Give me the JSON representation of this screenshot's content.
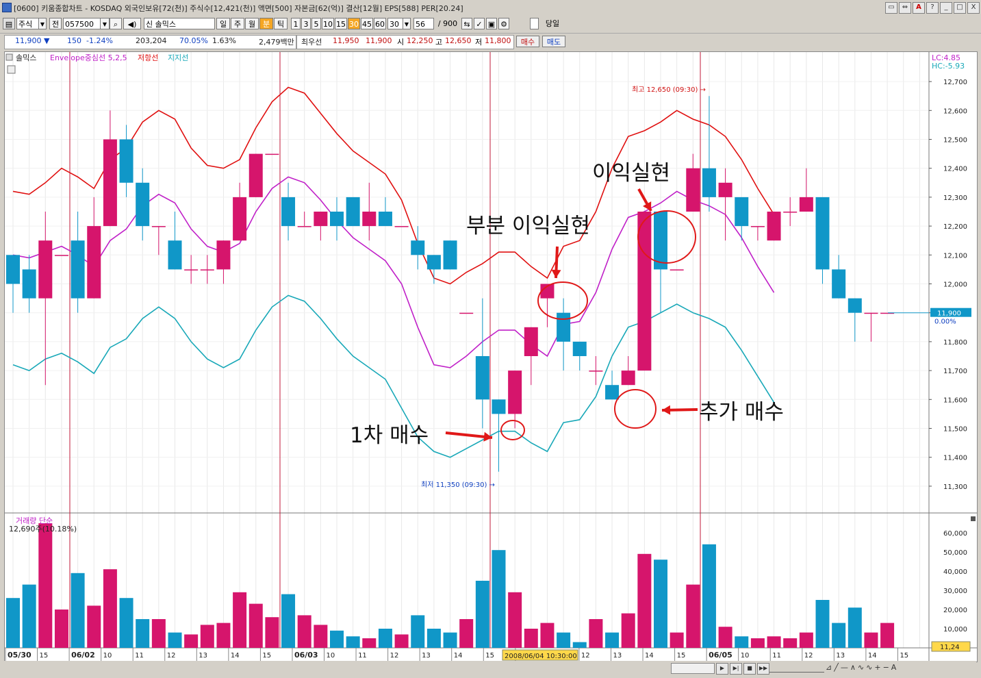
{
  "window": {
    "title": "[0600] 키움종합차트 - KOSDAQ 외국인보유[72(천)] 주식수[12,421(천)] 액면[500] 자본금[62(억)] 결산[12월] EPS[588] PER[20.24]",
    "buttons": [
      "▭",
      "⇔",
      "A",
      "?",
      "_",
      "□",
      "X"
    ]
  },
  "toolbar": {
    "market": "주식",
    "prev_label": "전",
    "code": "057500",
    "name": "신 솔믹스",
    "periods": [
      "일",
      "주",
      "월",
      "분",
      "틱"
    ],
    "selected_period": "분",
    "minutes": [
      "1",
      "3",
      "5",
      "10",
      "15",
      "30",
      "45",
      "60"
    ],
    "selected_minute": "30",
    "interval_value": "30",
    "count_value": "56",
    "count_total": "/ 900",
    "today_label": "당일"
  },
  "quote": {
    "price": "11,900 ▼",
    "change": "150",
    "change_pct": "-1.24%",
    "volume": "203,204",
    "ratio1": "70.05%",
    "ratio2": "1.63%",
    "amount": "2,479백만",
    "best_label": "최우선",
    "best_ask": "11,950",
    "best_bid": "11,900",
    "open_label": "시",
    "open": "12,250",
    "high_label": "고",
    "high": "12,650",
    "low_label": "저",
    "low": "11,800",
    "buy_btn": "매수",
    "sell_btn": "매도"
  },
  "legend": {
    "name": "솔믹스",
    "env": "Envelope중심선 5,2,5",
    "resist": "저항선",
    "support": "지지선",
    "lc": "LC:4.85",
    "hc": "HC:-5.93",
    "vol_title": "거래량 단순",
    "vol_value": "12,690주(10.18%)"
  },
  "annotations": {
    "high_text": "최고 12,650 (09:30) →",
    "low_text": "최저 11,350 (09:30) →",
    "first_buy": "1차 매수",
    "partial_profit": "부분 이익실현",
    "profit": "이익실현",
    "add_buy": "추가 매수",
    "price_tag": "11,900",
    "price_pct": "0.00%",
    "vol_tag": "11,24",
    "cursor_time": "2008/06/04 10:30:00"
  },
  "colors": {
    "up": "#d6156c",
    "down": "#1097c8",
    "resist": "#e01010",
    "center": "#c020c8",
    "support": "#18a8b8",
    "day_line": "#c01a3a"
  },
  "chart_data": {
    "type": "candlestick",
    "ylim": [
      11250,
      12750
    ],
    "yticks": [
      11300,
      11400,
      11500,
      11600,
      11700,
      11800,
      11900,
      12000,
      12100,
      12200,
      12300,
      12400,
      12500,
      12600,
      12700
    ],
    "candles": [
      {
        "o": 12100,
        "c": 12000,
        "h": 12100,
        "l": 11900,
        "v": 26000
      },
      {
        "o": 12050,
        "c": 11950,
        "h": 12100,
        "l": 11900,
        "v": 33000
      },
      {
        "o": 11950,
        "c": 12150,
        "h": 12250,
        "l": 11650,
        "v": 65000
      },
      {
        "o": 12100,
        "c": 12100,
        "h": 12100,
        "l": 12100,
        "v": 20000
      },
      {
        "o": 12150,
        "c": 11950,
        "h": 12250,
        "l": 11900,
        "v": 39000
      },
      {
        "o": 11950,
        "c": 12200,
        "h": 12300,
        "l": 11950,
        "v": 22000
      },
      {
        "o": 12200,
        "c": 12500,
        "h": 12600,
        "l": 12200,
        "v": 41000
      },
      {
        "o": 12500,
        "c": 12350,
        "h": 12550,
        "l": 12300,
        "v": 26000
      },
      {
        "o": 12350,
        "c": 12200,
        "h": 12400,
        "l": 12150,
        "v": 15000
      },
      {
        "o": 12200,
        "c": 12200,
        "h": 12200,
        "l": 12100,
        "v": 15000
      },
      {
        "o": 12150,
        "c": 12050,
        "h": 12250,
        "l": 12050,
        "v": 8000
      },
      {
        "o": 12050,
        "c": 12050,
        "h": 12100,
        "l": 12000,
        "v": 7000
      },
      {
        "o": 12050,
        "c": 12050,
        "h": 12100,
        "l": 12000,
        "v": 12000
      },
      {
        "o": 12050,
        "c": 12150,
        "h": 12150,
        "l": 12000,
        "v": 13000
      },
      {
        "o": 12150,
        "c": 12300,
        "h": 12350,
        "l": 12150,
        "v": 29000
      },
      {
        "o": 12300,
        "c": 12450,
        "h": 12450,
        "l": 12300,
        "v": 23000
      },
      {
        "o": 12450,
        "c": 12450,
        "h": 12450,
        "l": 12450,
        "v": 16000
      },
      {
        "o": 12300,
        "c": 12200,
        "h": 12350,
        "l": 12150,
        "v": 28000
      },
      {
        "o": 12200,
        "c": 12200,
        "h": 12250,
        "l": 12200,
        "v": 17000
      },
      {
        "o": 12200,
        "c": 12250,
        "h": 12250,
        "l": 12150,
        "v": 12000
      },
      {
        "o": 12250,
        "c": 12200,
        "h": 12300,
        "l": 12150,
        "v": 9000
      },
      {
        "o": 12300,
        "c": 12200,
        "h": 12300,
        "l": 12200,
        "v": 6000
      },
      {
        "o": 12200,
        "c": 12250,
        "h": 12350,
        "l": 12150,
        "v": 5000
      },
      {
        "o": 12250,
        "c": 12200,
        "h": 12300,
        "l": 12200,
        "v": 10000
      },
      {
        "o": 12200,
        "c": 12200,
        "h": 12200,
        "l": 12200,
        "v": 7000
      },
      {
        "o": 12150,
        "c": 12100,
        "h": 12200,
        "l": 12050,
        "v": 17000
      },
      {
        "o": 12100,
        "c": 12050,
        "h": 12100,
        "l": 12000,
        "v": 10000
      },
      {
        "o": 12150,
        "c": 12050,
        "h": 12150,
        "l": 12050,
        "v": 8000
      },
      {
        "o": 11900,
        "c": 11900,
        "h": 11900,
        "l": 11900,
        "v": 15000
      },
      {
        "o": 11750,
        "c": 11600,
        "h": 11950,
        "l": 11500,
        "v": 35000
      },
      {
        "o": 11600,
        "c": 11550,
        "h": 11600,
        "l": 11350,
        "v": 51000
      },
      {
        "o": 11550,
        "c": 11700,
        "h": 11700,
        "l": 11500,
        "v": 29000
      },
      {
        "o": 11750,
        "c": 11850,
        "h": 11850,
        "l": 11650,
        "v": 10000
      },
      {
        "o": 11950,
        "c": 12000,
        "h": 12000,
        "l": 11850,
        "v": 13000
      },
      {
        "o": 11900,
        "c": 11800,
        "h": 11950,
        "l": 11700,
        "v": 8000
      },
      {
        "o": 11800,
        "c": 11750,
        "h": 11800,
        "l": 11700,
        "v": 3000
      },
      {
        "o": 11700,
        "c": 11700,
        "h": 11750,
        "l": 11650,
        "v": 15000
      },
      {
        "o": 11650,
        "c": 11600,
        "h": 11700,
        "l": 11600,
        "v": 8000
      },
      {
        "o": 11650,
        "c": 11700,
        "h": 11750,
        "l": 11650,
        "v": 18000
      },
      {
        "o": 11700,
        "c": 12250,
        "h": 12250,
        "l": 11700,
        "v": 49000
      },
      {
        "o": 12250,
        "c": 12050,
        "h": 12250,
        "l": 11900,
        "v": 46000
      },
      {
        "o": 12050,
        "c": 12050,
        "h": 12050,
        "l": 12050,
        "v": 8000
      },
      {
        "o": 12250,
        "c": 12400,
        "h": 12450,
        "l": 12250,
        "v": 33000
      },
      {
        "o": 12400,
        "c": 12300,
        "h": 12650,
        "l": 12250,
        "v": 54000
      },
      {
        "o": 12300,
        "c": 12350,
        "h": 12400,
        "l": 12150,
        "v": 11000
      },
      {
        "o": 12300,
        "c": 12200,
        "h": 12300,
        "l": 12150,
        "v": 6000
      },
      {
        "o": 12200,
        "c": 12200,
        "h": 12200,
        "l": 12150,
        "v": 5000
      },
      {
        "o": 12150,
        "c": 12250,
        "h": 12250,
        "l": 12150,
        "v": 6000
      },
      {
        "o": 12250,
        "c": 12250,
        "h": 12300,
        "l": 12200,
        "v": 5000
      },
      {
        "o": 12250,
        "c": 12300,
        "h": 12400,
        "l": 12250,
        "v": 8000
      },
      {
        "o": 12300,
        "c": 12050,
        "h": 12300,
        "l": 12000,
        "v": 25000
      },
      {
        "o": 12050,
        "c": 11950,
        "h": 12100,
        "l": 11950,
        "v": 13000
      },
      {
        "o": 11950,
        "c": 11900,
        "h": 11950,
        "l": 11800,
        "v": 21000
      },
      {
        "o": 11900,
        "c": 11900,
        "h": 11900,
        "l": 11800,
        "v": 8000
      },
      {
        "o": 11900,
        "c": 11900,
        "h": 11900,
        "l": 11900,
        "v": 13000
      }
    ],
    "resistance": [
      12320,
      12310,
      12350,
      12400,
      12370,
      12330,
      12430,
      12470,
      12560,
      12600,
      12570,
      12470,
      12410,
      12400,
      12430,
      12540,
      12630,
      12680,
      12660,
      12590,
      12520,
      12460,
      12420,
      12380,
      12290,
      12140,
      12020,
      12000,
      12040,
      12070,
      12110,
      12110,
      12060,
      12020,
      12130,
      12150,
      12250,
      12400,
      12510,
      12530,
      12560,
      12600,
      12570,
      12550,
      12510,
      12430,
      12330,
      12240
    ],
    "center": [
      12100,
      12090,
      12110,
      12130,
      12100,
      12060,
      12150,
      12190,
      12270,
      12310,
      12280,
      12190,
      12130,
      12110,
      12140,
      12250,
      12330,
      12370,
      12350,
      12290,
      12220,
      12160,
      12120,
      12080,
      12000,
      11850,
      11720,
      11710,
      11750,
      11800,
      11840,
      11840,
      11790,
      11750,
      11860,
      11870,
      11970,
      12120,
      12230,
      12250,
      12280,
      12320,
      12290,
      12270,
      12240,
      12160,
      12060,
      11970
    ],
    "support": [
      11720,
      11700,
      11740,
      11760,
      11730,
      11690,
      11780,
      11810,
      11880,
      11920,
      11880,
      11800,
      11740,
      11710,
      11740,
      11840,
      11920,
      11960,
      11940,
      11880,
      11810,
      11750,
      11710,
      11670,
      11570,
      11470,
      11420,
      11400,
      11430,
      11460,
      11490,
      11490,
      11450,
      11420,
      11520,
      11530,
      11610,
      11750,
      11850,
      11870,
      11900,
      11930,
      11900,
      11880,
      11850,
      11770,
      11680,
      11590
    ],
    "x_labels": [
      "05/30",
      "15",
      "06/02",
      "10",
      "11",
      "12",
      "13",
      "14",
      "15",
      "06/03",
      "10",
      "11",
      "12",
      "13",
      "14",
      "15",
      "06",
      "",
      "12",
      "13",
      "14",
      "15",
      "06/05",
      "10",
      "11",
      "12",
      "13",
      "14",
      "15"
    ]
  }
}
